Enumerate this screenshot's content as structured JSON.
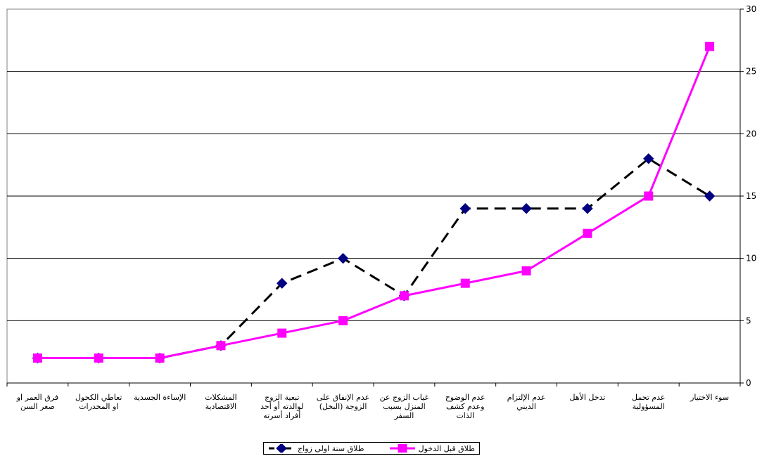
{
  "chart_data": {
    "type": "line",
    "categories": [
      [
        "فرق العمر او",
        "صغر السن"
      ],
      [
        "تعاطي الكحول",
        "او المخدرات"
      ],
      [
        "الإساءة الجسدية"
      ],
      [
        "المشكلات",
        "الاقتصادية"
      ],
      [
        "تبعية الزوج",
        "لوالدته أو أحد",
        "أفراد أسرته"
      ],
      [
        "عدم الإنفاق على",
        "الزوجة (البخل)"
      ],
      [
        "غياب الزوج عن",
        "المنزل بسبب",
        "السفر"
      ],
      [
        "عدم الوضوح",
        "وعدم كشف",
        "الذات"
      ],
      [
        "عدم الإلتزام",
        "الديني"
      ],
      [
        "تدخل الأهل"
      ],
      [
        "عدم تحمل",
        "المسؤولية"
      ],
      [
        "سوء الاختيار"
      ]
    ],
    "series": [
      {
        "name": "طلاق سنة اولى زواج",
        "color": "#000000",
        "marker_color": "#000080",
        "style": "dashed",
        "marker": "diamond",
        "values": [
          2,
          2,
          2,
          3,
          8,
          10,
          7,
          14,
          14,
          14,
          18,
          15
        ]
      },
      {
        "name": "طلاق قبل الدخول",
        "color": "#ff00ff",
        "marker_color": "#ff00ff",
        "style": "solid",
        "marker": "square",
        "values": [
          2,
          2,
          2,
          3,
          4,
          5,
          7,
          8,
          9,
          12,
          15,
          27
        ]
      }
    ],
    "ylim": [
      0,
      30
    ],
    "yticks": [
      "0",
      "5",
      "10",
      "15",
      "20",
      "25",
      "30"
    ],
    "y_axis_position": "right",
    "grid": true,
    "legend_position": "bottom"
  }
}
